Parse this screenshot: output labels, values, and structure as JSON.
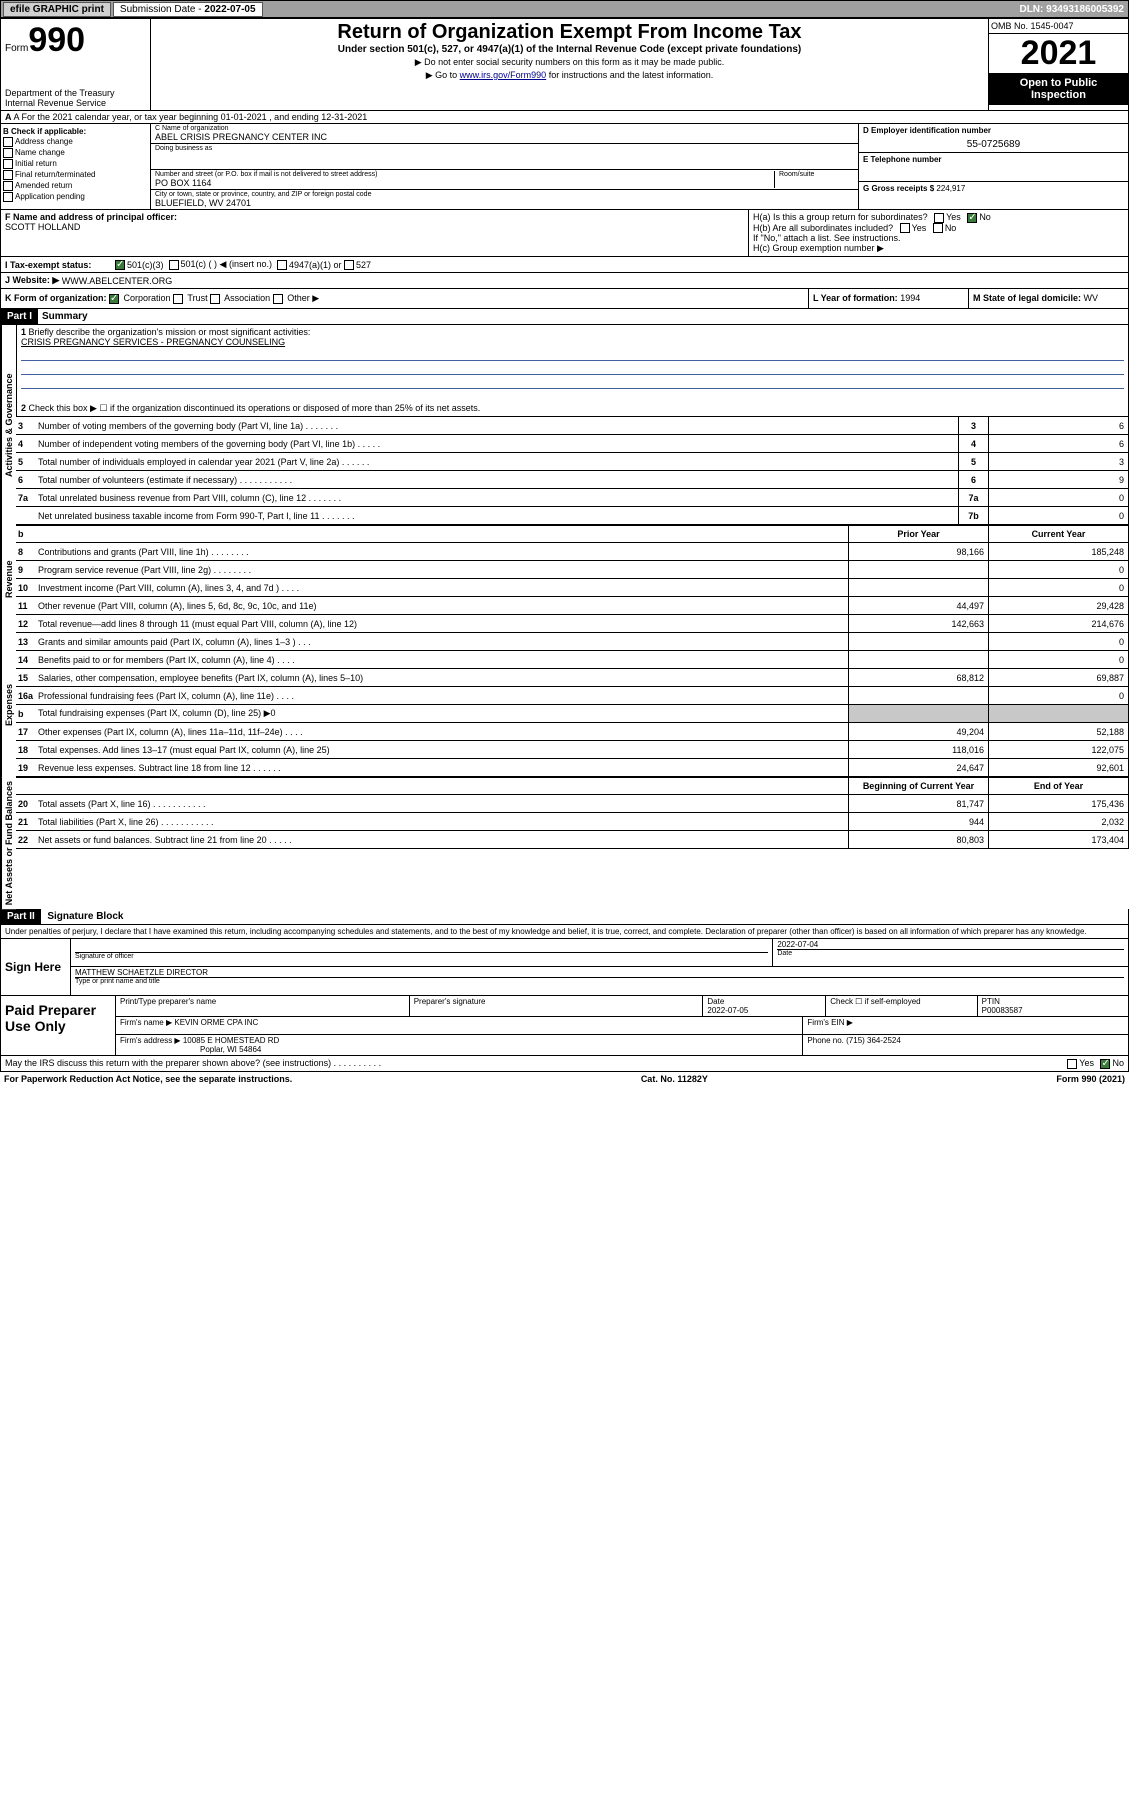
{
  "topbar": {
    "efile": "efile GRAPHIC print",
    "subdate_label": "Submission Date - ",
    "subdate": "2022-07-05",
    "dln": "DLN: 93493186005392"
  },
  "header": {
    "form_label": "Form",
    "form_number": "990",
    "title": "Return of Organization Exempt From Income Tax",
    "subtitle": "Under section 501(c), 527, or 4947(a)(1) of the Internal Revenue Code (except private foundations)",
    "note1": "▶ Do not enter social security numbers on this form as it may be made public.",
    "note2_pre": "▶ Go to ",
    "note2_link": "www.irs.gov/Form990",
    "note2_post": " for instructions and the latest information.",
    "dept": "Department of the Treasury Internal Revenue Service",
    "omb": "OMB No. 1545-0047",
    "year": "2021",
    "open": "Open to Public Inspection"
  },
  "row_a": "A For the 2021 calendar year, or tax year beginning 01-01-2021 , and ending 12-31-2021",
  "section_b": {
    "label": "B Check if applicable:",
    "opts": [
      "Address change",
      "Name change",
      "Initial return",
      "Final return/terminated",
      "Amended return",
      "Application pending"
    ]
  },
  "section_c": {
    "name_label": "C Name of organization",
    "name": "ABEL CRISIS PREGNANCY CENTER INC",
    "dba_label": "Doing business as",
    "dba": "",
    "addr_label": "Number and street (or P.O. box if mail is not delivered to street address)",
    "room_label": "Room/suite",
    "addr": "PO BOX 1164",
    "city_label": "City or town, state or province, country, and ZIP or foreign postal code",
    "city": "BLUEFIELD, WV  24701"
  },
  "section_d": {
    "ein_label": "D Employer identification number",
    "ein": "55-0725689",
    "tel_label": "E Telephone number",
    "tel": "",
    "gross_label": "G Gross receipts $",
    "gross": "224,917"
  },
  "section_f": {
    "label": "F  Name and address of principal officer:",
    "name": "SCOTT HOLLAND"
  },
  "section_h": {
    "ha": "H(a)  Is this a group return for subordinates?",
    "hb": "H(b)  Are all subordinates included?",
    "hb_note": "If \"No,\" attach a list. See instructions.",
    "hc": "H(c)  Group exemption number ▶"
  },
  "section_i": {
    "label": "I  Tax-exempt status:",
    "o1": "501(c)(3)",
    "o2": "501(c) (  ) ◀ (insert no.)",
    "o3": "4947(a)(1) or",
    "o4": "527"
  },
  "section_j": {
    "label": "J  Website: ▶",
    "val": "WWW.ABELCENTER.ORG"
  },
  "section_k": {
    "label": "K Form of organization:",
    "opts": [
      "Corporation",
      "Trust",
      "Association",
      "Other ▶"
    ],
    "l_label": "L Year of formation:",
    "l_val": "1994",
    "m_label": "M State of legal domicile:",
    "m_val": "WV"
  },
  "part1": {
    "header": "Part I",
    "title": "Summary",
    "q1": "Briefly describe the organization's mission or most significant activities:",
    "q1_val": "CRISIS PREGNANCY SERVICES - PREGNANCY COUNSELING",
    "q2": "Check this box ▶ ☐  if the organization discontinued its operations or disposed of more than 25% of its net assets.",
    "lines_gov": [
      {
        "n": "3",
        "d": "Number of voting members of the governing body (Part VI, line 1a)  .    .    .    .    .    .    .",
        "box": "3",
        "v": "6"
      },
      {
        "n": "4",
        "d": "Number of independent voting members of the governing body (Part VI, line 1b)   .    .    .    .    .",
        "box": "4",
        "v": "6"
      },
      {
        "n": "5",
        "d": "Total number of individuals employed in calendar year 2021 (Part V, line 2a)   .    .    .    .    .    .",
        "box": "5",
        "v": "3"
      },
      {
        "n": "6",
        "d": "Total number of volunteers (estimate if necessary)   .    .    .    .    .    .    .    .    .    .    .",
        "box": "6",
        "v": "9"
      },
      {
        "n": "7a",
        "d": "Total unrelated business revenue from Part VIII, column (C), line 12   .    .    .    .    .    .    .",
        "box": "7a",
        "v": "0"
      },
      {
        "n": "",
        "d": "Net unrelated business taxable income from Form 990-T, Part I, line 11   .    .    .    .    .    .    .",
        "box": "7b",
        "v": "0"
      }
    ],
    "col_prior": "Prior Year",
    "col_current": "Current Year",
    "lines_rev": [
      {
        "n": "8",
        "d": "Contributions and grants (Part VIII, line 1h)   .    .    .    .    .    .    .    .",
        "p": "98,166",
        "c": "185,248"
      },
      {
        "n": "9",
        "d": "Program service revenue (Part VIII, line 2g)   .    .    .    .    .    .    .    .",
        "p": "",
        "c": "0"
      },
      {
        "n": "10",
        "d": "Investment income (Part VIII, column (A), lines 3, 4, and 7d )   .    .    .    .",
        "p": "",
        "c": "0"
      },
      {
        "n": "11",
        "d": "Other revenue (Part VIII, column (A), lines 5, 6d, 8c, 9c, 10c, and 11e)",
        "p": "44,497",
        "c": "29,428"
      },
      {
        "n": "12",
        "d": "Total revenue—add lines 8 through 11 (must equal Part VIII, column (A), line 12)",
        "p": "142,663",
        "c": "214,676"
      }
    ],
    "lines_exp": [
      {
        "n": "13",
        "d": "Grants and similar amounts paid (Part IX, column (A), lines 1–3 )   .    .    .",
        "p": "",
        "c": "0"
      },
      {
        "n": "14",
        "d": "Benefits paid to or for members (Part IX, column (A), line 4)   .    .    .    .",
        "p": "",
        "c": "0"
      },
      {
        "n": "15",
        "d": "Salaries, other compensation, employee benefits (Part IX, column (A), lines 5–10)",
        "p": "68,812",
        "c": "69,887"
      },
      {
        "n": "16a",
        "d": "Professional fundraising fees (Part IX, column (A), line 11e)   .    .    .    .",
        "p": "",
        "c": "0"
      },
      {
        "n": "b",
        "d": "Total fundraising expenses (Part IX, column (D), line 25) ▶0",
        "p": "shade",
        "c": "shade"
      },
      {
        "n": "17",
        "d": "Other expenses (Part IX, column (A), lines 11a–11d, 11f–24e)   .    .    .    .",
        "p": "49,204",
        "c": "52,188"
      },
      {
        "n": "18",
        "d": "Total expenses. Add lines 13–17 (must equal Part IX, column (A), line 25)",
        "p": "118,016",
        "c": "122,075"
      },
      {
        "n": "19",
        "d": "Revenue less expenses. Subtract line 18 from line 12   .    .    .    .    .    .",
        "p": "24,647",
        "c": "92,601"
      }
    ],
    "col_begin": "Beginning of Current Year",
    "col_end": "End of Year",
    "lines_net": [
      {
        "n": "20",
        "d": "Total assets (Part X, line 16)   .    .    .    .    .    .    .    .    .    .    .",
        "p": "81,747",
        "c": "175,436"
      },
      {
        "n": "21",
        "d": "Total liabilities (Part X, line 26)   .    .    .    .    .    .    .    .    .    .    .",
        "p": "944",
        "c": "2,032"
      },
      {
        "n": "22",
        "d": "Net assets or fund balances. Subtract line 21 from line 20   .    .    .    .    .",
        "p": "80,803",
        "c": "173,404"
      }
    ],
    "vtabs": {
      "gov": "Activities & Governance",
      "rev": "Revenue",
      "exp": "Expenses",
      "net": "Net Assets or Fund Balances"
    }
  },
  "part2": {
    "header": "Part II",
    "title": "Signature Block",
    "declaration": "Under penalties of perjury, I declare that I have examined this return, including accompanying schedules and statements, and to the best of my knowledge and belief, it is true, correct, and complete. Declaration of preparer (other than officer) is based on all information of which preparer has any knowledge.",
    "sign_here": "Sign Here",
    "sig_officer_label": "Signature of officer",
    "sig_date": "2022-07-04",
    "sig_date_label": "Date",
    "officer_name": "MATTHEW SCHAETZLE  DIRECTOR",
    "officer_name_label": "Type or print name and title",
    "paid_prep": "Paid Preparer Use Only",
    "prep_name_label": "Print/Type preparer's name",
    "prep_sig_label": "Preparer's signature",
    "prep_date_label": "Date",
    "prep_date": "2022-07-05",
    "check_if": "Check ☐ if self-employed",
    "ptin_label": "PTIN",
    "ptin": "P00083587",
    "firm_name_label": "Firm's name     ▶",
    "firm_name": "KEVIN ORME CPA INC",
    "firm_ein_label": "Firm's EIN ▶",
    "firm_addr_label": "Firm's address ▶",
    "firm_addr1": "10085 E HOMESTEAD RD",
    "firm_addr2": "Poplar, WI  54864",
    "firm_phone_label": "Phone no.",
    "firm_phone": "(715) 364-2524",
    "may_irs": "May the IRS discuss this return with the preparer shown above? (see instructions)   .    .    .    .    .    .    .    .    .    ."
  },
  "footer": {
    "paperwork": "For Paperwork Reduction Act Notice, see the separate instructions.",
    "cat": "Cat. No. 11282Y",
    "form": "Form 990 (2021)"
  },
  "yesno": {
    "yes": "Yes",
    "no": "No"
  }
}
